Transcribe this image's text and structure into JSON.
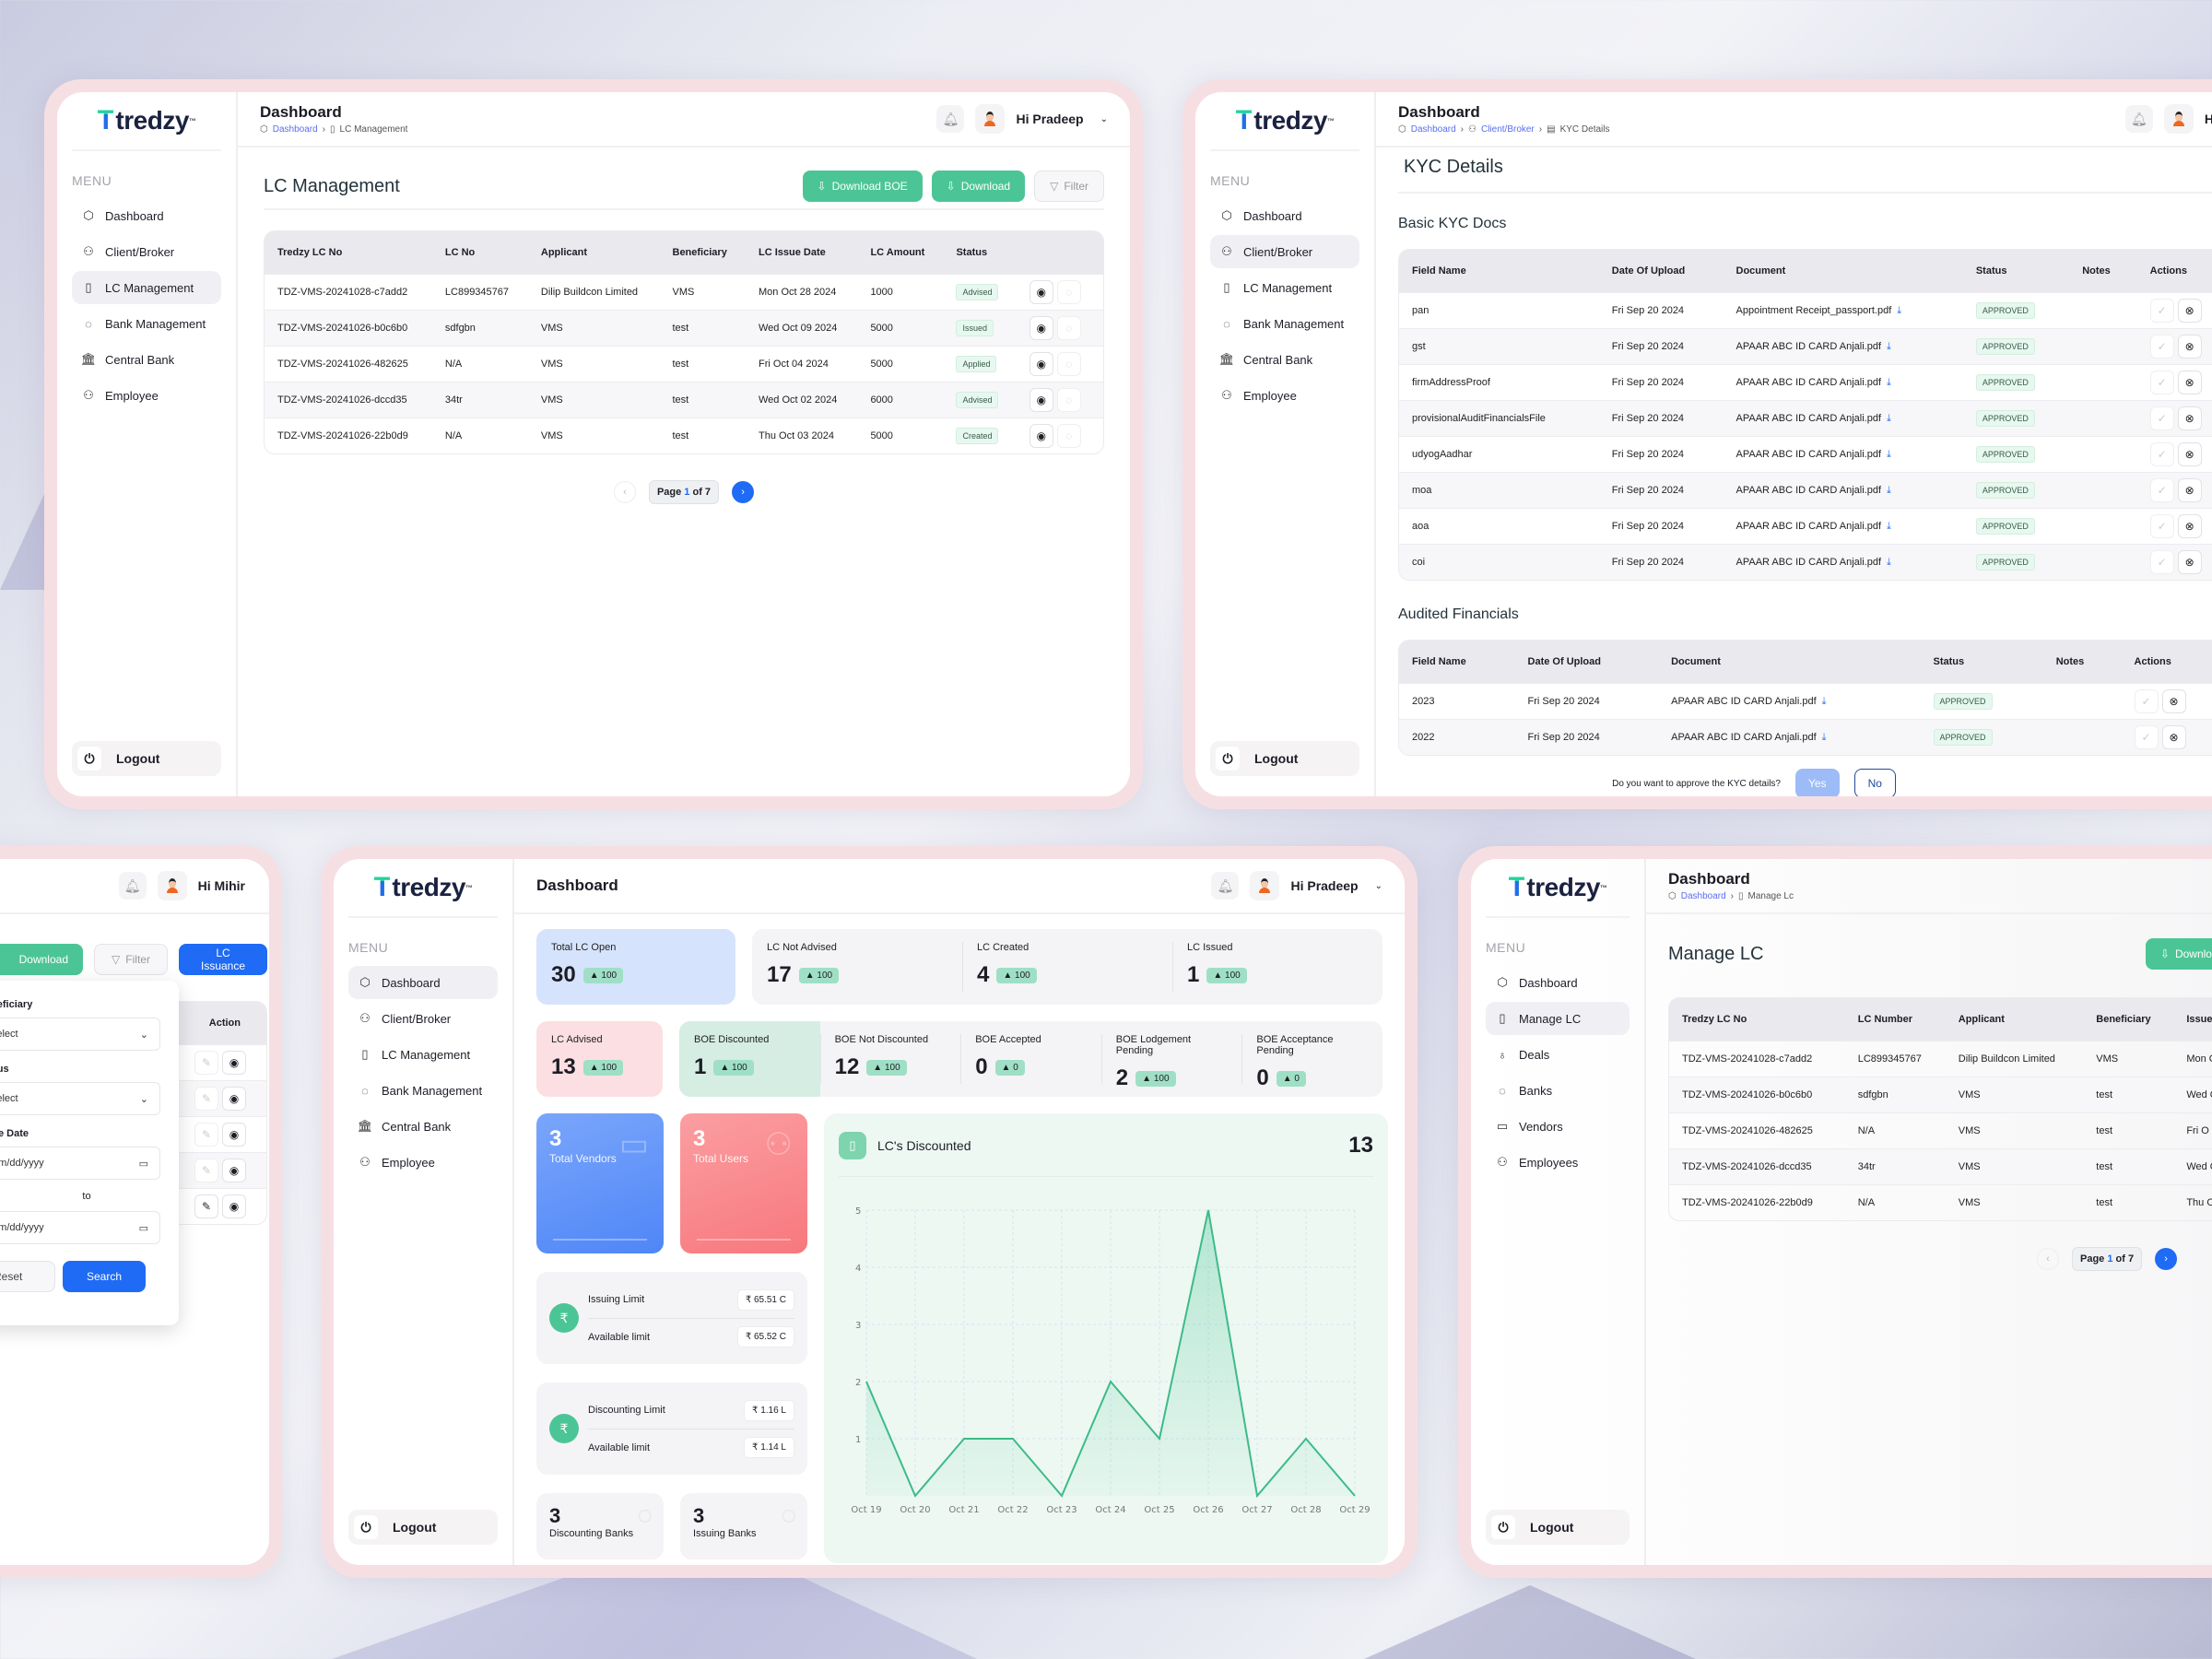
{
  "brand": {
    "logo_mark": "T",
    "logo_text": "tredzy",
    "tm": "™"
  },
  "menu_header": "MENU",
  "logout_label": "Logout",
  "colors": {
    "accent_green": "#4cc596",
    "accent_blue": "#1f6bf5",
    "frame_pink": "#f6dfe3"
  },
  "panel_lc_management": {
    "header_title": "Dashboard",
    "breadcrumb": [
      "Dashboard",
      "LC Management"
    ],
    "user_greeting": "Hi Pradeep",
    "sidebar": [
      {
        "label": "Dashboard",
        "icon": "cube-icon"
      },
      {
        "label": "Client/Broker",
        "icon": "users-icon"
      },
      {
        "label": "LC Management",
        "icon": "file-icon",
        "active": true
      },
      {
        "label": "Bank Management",
        "icon": "piggy-bank-icon"
      },
      {
        "label": "Central Bank",
        "icon": "bank-building-icon"
      },
      {
        "label": "Employee",
        "icon": "employee-icon"
      }
    ],
    "page_title": "LC Management",
    "buttons": {
      "download_boe": "Download BOE",
      "download": "Download",
      "filter": "Filter"
    },
    "table": {
      "columns": [
        "Tredzy LC No",
        "LC No",
        "Applicant",
        "Beneficiary",
        "LC Issue Date",
        "LC Amount",
        "Status",
        ""
      ],
      "rows": [
        [
          "TDZ-VMS-20241028-c7add2",
          "LC899345767",
          "Dilip Buildcon Limited",
          "VMS",
          "Mon Oct 28 2024",
          "1000",
          "Advised"
        ],
        [
          "TDZ-VMS-20241026-b0c6b0",
          "sdfgbn",
          "VMS",
          "test",
          "Wed Oct 09 2024",
          "5000",
          "Issued"
        ],
        [
          "TDZ-VMS-20241026-482625",
          "N/A",
          "VMS",
          "test",
          "Fri Oct 04 2024",
          "5000",
          "Applied"
        ],
        [
          "TDZ-VMS-20241026-dccd35",
          "34tr",
          "VMS",
          "test",
          "Wed Oct 02 2024",
          "6000",
          "Advised"
        ],
        [
          "TDZ-VMS-20241026-22b0d9",
          "N/A",
          "VMS",
          "test",
          "Thu Oct 03 2024",
          "5000",
          "Created"
        ]
      ]
    },
    "pager": {
      "prefix": "Page",
      "current": "1",
      "suffix": "of 7"
    }
  },
  "panel_kyc": {
    "header_title": "Dashboard",
    "breadcrumb": [
      "Dashboard",
      "Client/Broker",
      "KYC Details"
    ],
    "user_greeting": "Hi Pradeep",
    "sidebar": [
      {
        "label": "Dashboard"
      },
      {
        "label": "Client/Broker",
        "active": true
      },
      {
        "label": "LC Management"
      },
      {
        "label": "Bank Management"
      },
      {
        "label": "Central Bank"
      },
      {
        "label": "Employee"
      }
    ],
    "page_title": "KYC Details",
    "basic_title": "Basic KYC Docs",
    "basic_columns": [
      "Field Name",
      "Date Of Upload",
      "Document",
      "Status",
      "Notes",
      "Actions"
    ],
    "basic_rows": [
      [
        "pan",
        "Fri Sep 20 2024",
        "Appointment Receipt_passport.pdf",
        "APPROVED"
      ],
      [
        "gst",
        "Fri Sep 20 2024",
        "APAAR ABC ID CARD Anjali.pdf",
        "APPROVED"
      ],
      [
        "firmAddressProof",
        "Fri Sep 20 2024",
        "APAAR ABC ID CARD Anjali.pdf",
        "APPROVED"
      ],
      [
        "provisionalAuditFinancialsFile",
        "Fri Sep 20 2024",
        "APAAR ABC ID CARD Anjali.pdf",
        "APPROVED"
      ],
      [
        "udyogAadhar",
        "Fri Sep 20 2024",
        "APAAR ABC ID CARD Anjali.pdf",
        "APPROVED"
      ],
      [
        "moa",
        "Fri Sep 20 2024",
        "APAAR ABC ID CARD Anjali.pdf",
        "APPROVED"
      ],
      [
        "aoa",
        "Fri Sep 20 2024",
        "APAAR ABC ID CARD Anjali.pdf",
        "APPROVED"
      ],
      [
        "coi",
        "Fri Sep 20 2024",
        "APAAR ABC ID CARD Anjali.pdf",
        "APPROVED"
      ]
    ],
    "audited_title": "Audited Financials",
    "audited_columns": [
      "Field Name",
      "Date Of Upload",
      "Document",
      "Status",
      "Notes",
      "Actions"
    ],
    "audited_rows": [
      [
        "2023",
        "Fri Sep 20 2024",
        "APAAR ABC ID CARD Anjali.pdf",
        "APPROVED"
      ],
      [
        "2022",
        "Fri Sep 20 2024",
        "APAAR ABC ID CARD Anjali.pdf",
        "APPROVED"
      ]
    ],
    "approve_question": "Do you want to approve the KYC details?",
    "yes_label": "Yes",
    "no_label": "No"
  },
  "panel_filter": {
    "user_greeting": "Hi Mihir",
    "buttons": {
      "download": "Download",
      "filter": "Filter",
      "lc_issuance": "LC Issuance"
    },
    "action_header": "Action",
    "filter_form": {
      "beneficiary_label": "Beneficiary",
      "beneficiary_value": "Select",
      "status_label": "Status",
      "status_value": "Select",
      "issue_date_label": "Issue Date",
      "date_from_placeholder": "mm/dd/yyyy",
      "to_label": "to",
      "date_to_placeholder": "mm/dd/yyyy",
      "reset": "Reset",
      "search": "Search"
    }
  },
  "panel_dashboard": {
    "header_title": "Dashboard",
    "user_greeting": "Hi Pradeep",
    "sidebar": [
      {
        "label": "Dashboard",
        "active": true
      },
      {
        "label": "Client/Broker"
      },
      {
        "label": "LC Management"
      },
      {
        "label": "Bank Management"
      },
      {
        "label": "Central Bank"
      },
      {
        "label": "Employee"
      }
    ],
    "row1": [
      {
        "label": "Total LC Open",
        "value": "30",
        "trend": "100"
      },
      {
        "label": "LC Not Advised",
        "value": "17",
        "trend": "100"
      },
      {
        "label": "LC Created",
        "value": "4",
        "trend": "100"
      },
      {
        "label": "LC Issued",
        "value": "1",
        "trend": "100"
      }
    ],
    "row2": [
      {
        "label": "LC Advised",
        "value": "13",
        "trend": "100"
      },
      {
        "label": "BOE Discounted",
        "value": "1",
        "trend": "100"
      },
      {
        "label": "BOE Not Discounted",
        "value": "12",
        "trend": "100"
      },
      {
        "label": "BOE Accepted",
        "value": "0",
        "trend": "0"
      },
      {
        "label": "BOE Lodgement Pending",
        "value": "2",
        "trend": "100"
      },
      {
        "label": "BOE Acceptance Pending",
        "value": "0",
        "trend": "0"
      }
    ],
    "total_vendors": {
      "value": "3",
      "label": "Total Vendors"
    },
    "total_users": {
      "value": "3",
      "label": "Total Users"
    },
    "issuing": {
      "limit_label": "Issuing Limit",
      "limit_value": "₹ 65.51 C",
      "avail_label": "Available limit",
      "avail_value": "₹ 65.52 C"
    },
    "discounting": {
      "limit_label": "Discounting Limit",
      "limit_value": "₹ 1.16 L",
      "avail_label": "Available limit",
      "avail_value": "₹ 1.14 L"
    },
    "discounting_banks": {
      "value": "3",
      "label": "Discounting Banks"
    },
    "issuing_banks": {
      "value": "3",
      "label": "Issuing Banks"
    },
    "chart_title": "LC's Discounted",
    "chart_total": "13"
  },
  "panel_manage_lc": {
    "header_title": "Dashboard",
    "breadcrumb": [
      "Dashboard",
      "Manage Lc"
    ],
    "sidebar": [
      {
        "label": "Dashboard"
      },
      {
        "label": "Manage LC",
        "active": true
      },
      {
        "label": "Deals"
      },
      {
        "label": "Banks"
      },
      {
        "label": "Vendors"
      },
      {
        "label": "Employees"
      }
    ],
    "page_title": "Manage LC",
    "download_boe": "Download BOE",
    "columns": [
      "Tredzy LC No",
      "LC Number",
      "Applicant",
      "Beneficiary",
      "Issue"
    ],
    "rows": [
      [
        "TDZ-VMS-20241028-c7add2",
        "LC899345767",
        "Dilip Buildcon Limited",
        "VMS",
        "Mon O"
      ],
      [
        "TDZ-VMS-20241026-b0c6b0",
        "sdfgbn",
        "VMS",
        "test",
        "Wed O"
      ],
      [
        "TDZ-VMS-20241026-482625",
        "N/A",
        "VMS",
        "test",
        "Fri O"
      ],
      [
        "TDZ-VMS-20241026-dccd35",
        "34tr",
        "VMS",
        "test",
        "Wed O"
      ],
      [
        "TDZ-VMS-20241026-22b0d9",
        "N/A",
        "VMS",
        "test",
        "Thu O"
      ]
    ],
    "pager": {
      "prefix": "Page",
      "current": "1",
      "suffix": "of 7"
    }
  },
  "chart_data": {
    "type": "line",
    "title": "LC's Discounted",
    "categories": [
      "Oct 19",
      "Oct 20",
      "Oct 21",
      "Oct 22",
      "Oct 23",
      "Oct 24",
      "Oct 25",
      "Oct 26",
      "Oct 27",
      "Oct 28",
      "Oct 29"
    ],
    "values": [
      2,
      0,
      1,
      1,
      0,
      2,
      1,
      5,
      0,
      1,
      0
    ],
    "xlabel": "",
    "ylabel": "",
    "yticks": [
      1,
      2,
      3,
      4,
      5
    ],
    "ylim": [
      0,
      5
    ],
    "grid": true,
    "fill": "area gradient",
    "total": 13
  }
}
